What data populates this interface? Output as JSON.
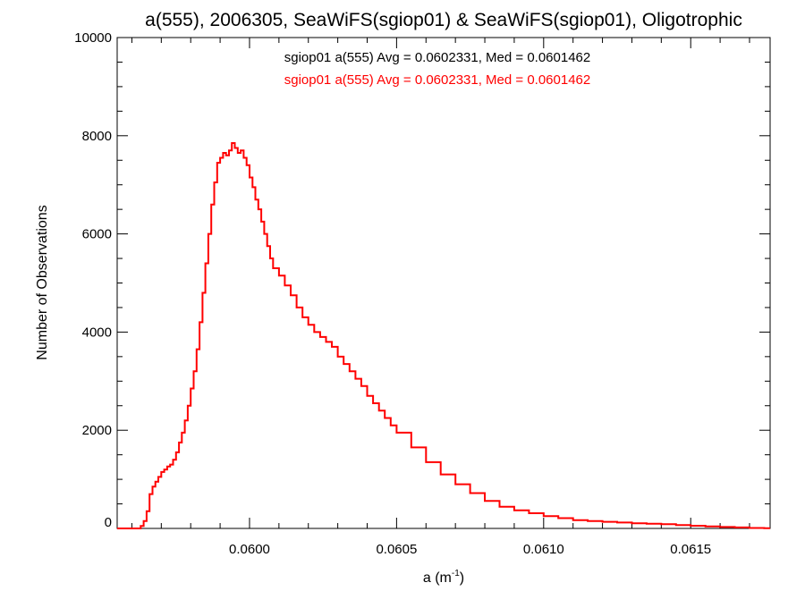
{
  "chart_data": {
    "type": "histogram",
    "title": "a(555), 2006305, SeaWiFS(sgiop01) & SeaWiFS(sgiop01), Oligotrophic",
    "xlabel": {
      "base": "a (m",
      "sup": "-1",
      "tail": ")"
    },
    "ylabel": "Number of Observations",
    "xlim": [
      0.05955,
      0.06177
    ],
    "ylim": [
      0,
      10000
    ],
    "grid": false,
    "legend_placement": "top-center",
    "x_ticks": [
      {
        "value": 0.06,
        "label": "0.0600"
      },
      {
        "value": 0.0605,
        "label": "0.0605"
      },
      {
        "value": 0.061,
        "label": "0.0610"
      },
      {
        "value": 0.0615,
        "label": "0.0615"
      }
    ],
    "y_ticks": [
      {
        "value": 0,
        "label": "0"
      },
      {
        "value": 2000,
        "label": "2000"
      },
      {
        "value": 4000,
        "label": "4000"
      },
      {
        "value": 6000,
        "label": "6000"
      },
      {
        "value": 8000,
        "label": "8000"
      },
      {
        "value": 10000,
        "label": "10000"
      }
    ],
    "annotations": [
      {
        "text": "sgiop01 a(555) Avg = 0.0602331, Med = 0.0601462",
        "color": "#000000"
      },
      {
        "text": "sgiop01 a(555) Avg = 0.0602331, Med = 0.0601462",
        "color": "#ff0000"
      }
    ],
    "series": [
      {
        "color": "#ff0000",
        "x": [
          0.05955,
          0.05958,
          0.0596,
          0.05962,
          0.05963,
          0.05964,
          0.05965,
          0.05966,
          0.05967,
          0.05968,
          0.05969,
          0.0597,
          0.05971,
          0.05972,
          0.05973,
          0.05974,
          0.05975,
          0.05976,
          0.05977,
          0.05978,
          0.05979,
          0.0598,
          0.05981,
          0.05982,
          0.05983,
          0.05984,
          0.05985,
          0.05986,
          0.05987,
          0.05988,
          0.05989,
          0.0599,
          0.05991,
          0.05992,
          0.05993,
          0.05994,
          0.05995,
          0.05996,
          0.05997,
          0.05998,
          0.05999,
          0.06,
          0.06001,
          0.06002,
          0.06003,
          0.06004,
          0.06005,
          0.06006,
          0.06007,
          0.06008,
          0.0601,
          0.06012,
          0.06014,
          0.06016,
          0.06018,
          0.0602,
          0.06022,
          0.06024,
          0.06026,
          0.06028,
          0.0603,
          0.06032,
          0.06034,
          0.06036,
          0.06038,
          0.0604,
          0.06042,
          0.06044,
          0.06046,
          0.06048,
          0.0605,
          0.06055,
          0.0606,
          0.06065,
          0.0607,
          0.06075,
          0.0608,
          0.06085,
          0.0609,
          0.06095,
          0.061,
          0.06105,
          0.0611,
          0.06115,
          0.0612,
          0.06125,
          0.0613,
          0.06135,
          0.0614,
          0.06145,
          0.0615,
          0.06155,
          0.0616,
          0.06165,
          0.0617,
          0.06175
        ],
        "values": [
          0,
          0,
          0,
          0,
          50,
          150,
          350,
          700,
          850,
          950,
          1050,
          1150,
          1200,
          1260,
          1300,
          1400,
          1550,
          1750,
          1950,
          2200,
          2500,
          2850,
          3200,
          3650,
          4200,
          4800,
          5400,
          6000,
          6600,
          7050,
          7450,
          7550,
          7650,
          7600,
          7700,
          7850,
          7750,
          7650,
          7700,
          7550,
          7400,
          7150,
          6950,
          6700,
          6500,
          6250,
          6000,
          5750,
          5500,
          5300,
          5150,
          4950,
          4750,
          4500,
          4300,
          4150,
          4000,
          3900,
          3800,
          3700,
          3500,
          3350,
          3200,
          3050,
          2900,
          2700,
          2550,
          2400,
          2250,
          2100,
          1950,
          1650,
          1350,
          1100,
          900,
          720,
          560,
          440,
          370,
          310,
          250,
          210,
          170,
          150,
          135,
          120,
          105,
          95,
          85,
          70,
          55,
          40,
          30,
          20,
          10,
          5
        ]
      }
    ]
  }
}
